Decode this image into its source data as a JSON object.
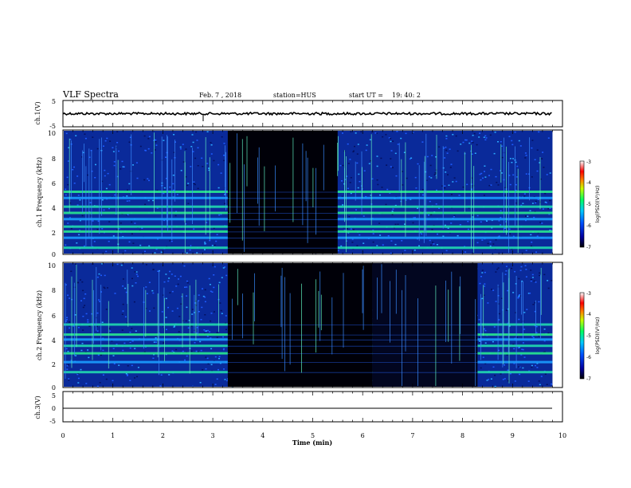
{
  "header": {
    "title": "VLF Spectra",
    "date": "Feb. 7 , 2018",
    "station": "station=HUS",
    "start": "start UT =",
    "start_time": "19: 40: 2"
  },
  "chart_data": [
    {
      "type": "line",
      "panel": "ch1_waveform",
      "ylabel": "ch.1(V)",
      "ylim": [
        -5,
        5
      ],
      "yticks": [
        "5",
        "-5"
      ],
      "description_values": "constant noisy trace near 0 V over 0-9.8 min",
      "x": [
        0,
        9.8
      ],
      "y": [
        0,
        0
      ]
    },
    {
      "type": "heatmap",
      "panel": "ch1_spectrogram",
      "ylabel": "ch.1 Frequency (kHz)",
      "ylim": [
        0,
        10
      ],
      "yticks": [
        "0",
        "2",
        "4",
        "6",
        "8",
        "10"
      ],
      "xlim": [
        0,
        9.8
      ],
      "quiet_segments_min": [
        [
          3.3,
          5.5
        ]
      ],
      "strong_bands_khz": [
        0.5,
        1.3,
        1.8,
        2.2,
        2.8,
        3.3,
        3.8,
        4.5,
        5.0
      ]
    },
    {
      "type": "heatmap",
      "panel": "ch2_spectrogram",
      "ylabel": "ch.2 Frequency (kHz)",
      "ylim": [
        0,
        10
      ],
      "yticks": [
        "0",
        "2",
        "4",
        "6",
        "8",
        "10"
      ],
      "xlim": [
        0,
        9.8
      ],
      "quiet_segments_min": [
        [
          3.3,
          6.2
        ],
        [
          6.2,
          8.3
        ]
      ],
      "strong_bands_khz": [
        1.2,
        2.0,
        2.7,
        3.3,
        3.8,
        4.2,
        5.0
      ]
    },
    {
      "type": "line",
      "panel": "ch3_waveform",
      "ylabel": "ch.3(V)",
      "ylim": [
        -5,
        5
      ],
      "yticks": [
        "5",
        "0",
        "-5"
      ],
      "x": [
        0,
        9.8
      ],
      "y": [
        0,
        0
      ]
    }
  ],
  "x_axis": {
    "label": "Time (min)",
    "ticks": [
      "0",
      "1",
      "2",
      "3",
      "4",
      "5",
      "6",
      "7",
      "8",
      "9",
      "10"
    ]
  },
  "colorbars": [
    {
      "label": "log(PSD)(V²/Hz)",
      "ticks": [
        "-3",
        "-4",
        "-5",
        "-6",
        "-7"
      ]
    },
    {
      "label": "log(PSD)(V²/Hz)",
      "ticks": [
        "-3",
        "-4",
        "-5",
        "-6",
        "-7"
      ]
    }
  ]
}
